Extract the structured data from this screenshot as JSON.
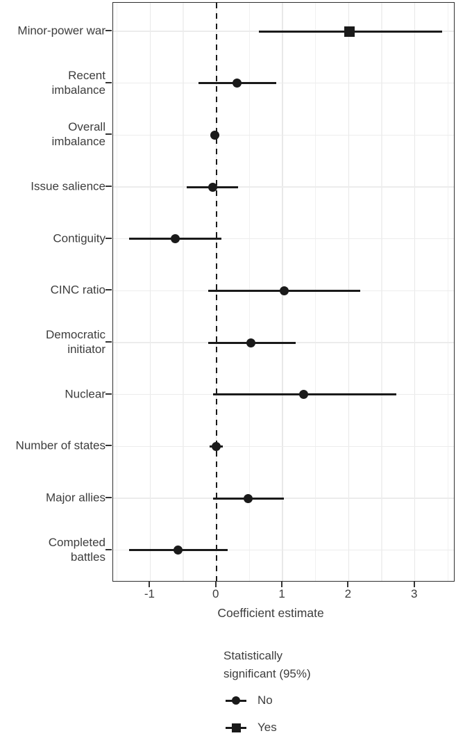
{
  "chart_data": {
    "type": "scatter",
    "subtype": "coefficient-dot-whisker",
    "orientation": "horizontal",
    "title": "",
    "xlabel": "Coefficient estimate",
    "ylabel": "",
    "xlim": [
      -1.56,
      3.59
    ],
    "x_ticks": [
      -1,
      0,
      1,
      2,
      3
    ],
    "x_minor_gridlines": [
      -1.5,
      -0.5,
      0.5,
      1.5,
      2.5,
      3.5
    ],
    "reference_line_x": 0,
    "grid": "on",
    "points": [
      {
        "label": "Minor-power war",
        "estimate": 2.01,
        "ci_low": 0.64,
        "ci_high": 3.41,
        "significant": "Yes",
        "marker": "square"
      },
      {
        "label": "Recent\nimbalance",
        "estimate": 0.31,
        "ci_low": -0.27,
        "ci_high": 0.9,
        "significant": "No",
        "marker": "circle"
      },
      {
        "label": "Overall\nimbalance",
        "estimate": -0.02,
        "ci_low": -0.08,
        "ci_high": 0.04,
        "significant": "No",
        "marker": "circle"
      },
      {
        "label": "Issue salience",
        "estimate": -0.06,
        "ci_low": -0.45,
        "ci_high": 0.33,
        "significant": "No",
        "marker": "circle"
      },
      {
        "label": "Contiguity",
        "estimate": -0.62,
        "ci_low": -1.32,
        "ci_high": 0.08,
        "significant": "No",
        "marker": "circle"
      },
      {
        "label": "CINC ratio",
        "estimate": 1.03,
        "ci_low": -0.12,
        "ci_high": 2.17,
        "significant": "No",
        "marker": "circle"
      },
      {
        "label": "Democratic\ninitiator",
        "estimate": 0.52,
        "ci_low": -0.12,
        "ci_high": 1.2,
        "significant": "No",
        "marker": "circle"
      },
      {
        "label": "Nuclear",
        "estimate": 1.32,
        "ci_low": -0.05,
        "ci_high": 2.72,
        "significant": "No",
        "marker": "circle"
      },
      {
        "label": "Number of states",
        "estimate": 0.0,
        "ci_low": -0.1,
        "ci_high": 0.1,
        "significant": "No",
        "marker": "circle"
      },
      {
        "label": "Major allies",
        "estimate": 0.48,
        "ci_low": -0.05,
        "ci_high": 1.02,
        "significant": "No",
        "marker": "circle"
      },
      {
        "label": "Completed\nbattles",
        "estimate": -0.58,
        "ci_low": -1.32,
        "ci_high": 0.17,
        "significant": "No",
        "marker": "circle"
      }
    ],
    "legend": {
      "position": "bottom",
      "title": "Statistically significant (95%)",
      "items": [
        {
          "label": "No",
          "marker": "circle"
        },
        {
          "label": "Yes",
          "marker": "square"
        }
      ]
    },
    "colors": {
      "marker": "#1a1a1a",
      "text": "#3d3d3d",
      "gridline_major": "#e8e8e8",
      "gridline_minor": "#f1f1f1",
      "panel_border": "#2d2d2d",
      "background": "#ffffff"
    }
  }
}
